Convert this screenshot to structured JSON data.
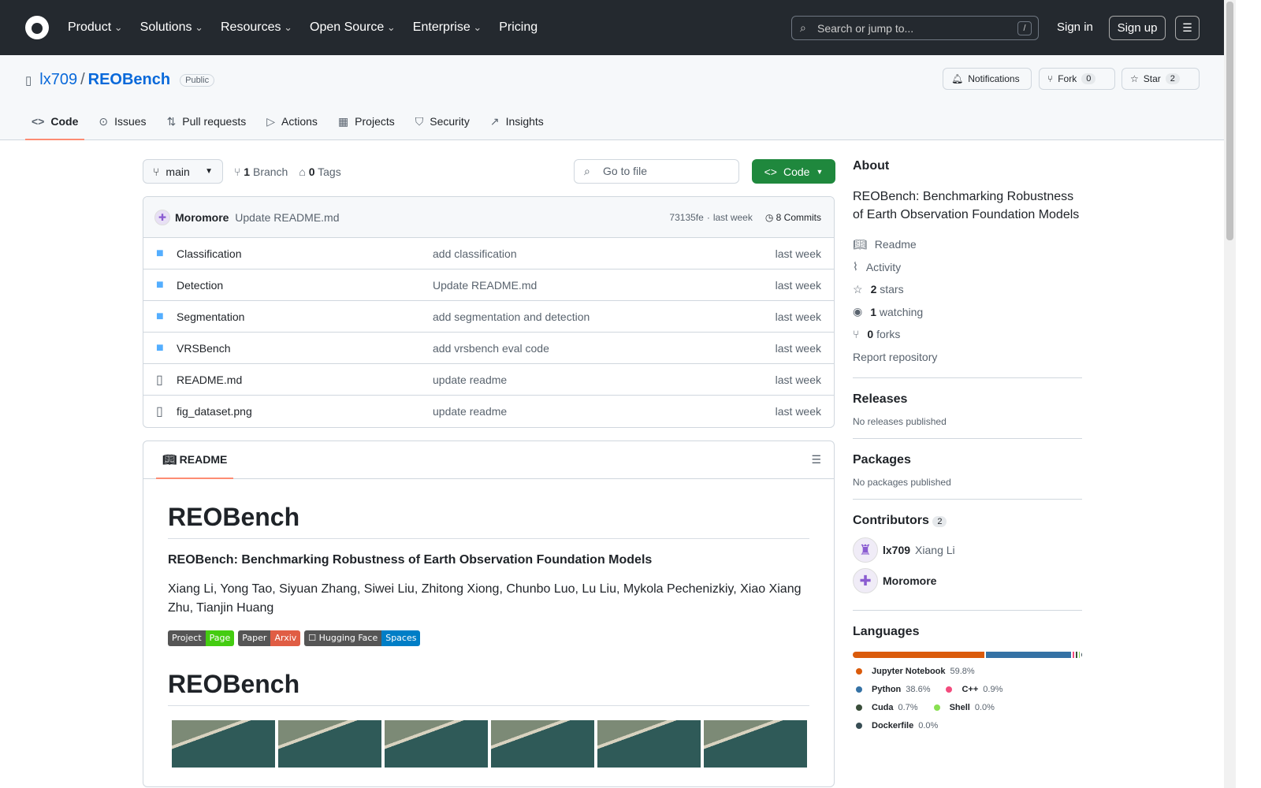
{
  "header": {
    "nav": [
      "Product",
      "Solutions",
      "Resources",
      "Open Source",
      "Enterprise",
      "Pricing"
    ],
    "search_placeholder": "Search or jump to...",
    "search_key": "/",
    "sign_in": "Sign in",
    "sign_up": "Sign up"
  },
  "repo": {
    "owner": "lx709",
    "name": "REOBench",
    "visibility": "Public",
    "notifications": "Notifications",
    "fork": "Fork",
    "fork_count": "0",
    "star": "Star",
    "star_count": "2"
  },
  "tabs": [
    "Code",
    "Issues",
    "Pull requests",
    "Actions",
    "Projects",
    "Security",
    "Insights"
  ],
  "toolbar": {
    "branch": "main",
    "branches_count": "1",
    "branches_label": "Branch",
    "tags_count": "0",
    "tags_label": "Tags",
    "goto": "Go to file",
    "code": "Code"
  },
  "commit": {
    "author": "Moromore",
    "message": "Update README.md",
    "hash": "73135fe",
    "sep": "·",
    "time": "last week",
    "commits": "8 Commits"
  },
  "files": [
    {
      "type": "folder",
      "name": "Classification",
      "message": "add classification",
      "time": "last week"
    },
    {
      "type": "folder",
      "name": "Detection",
      "message": "Update README.md",
      "time": "last week"
    },
    {
      "type": "folder",
      "name": "Segmentation",
      "message": "add segmentation and detection",
      "time": "last week"
    },
    {
      "type": "folder",
      "name": "VRSBench",
      "message": "add vrsbench eval code",
      "time": "last week"
    },
    {
      "type": "file",
      "name": "README.md",
      "message": "update readme",
      "time": "last week"
    },
    {
      "type": "file",
      "name": "fig_dataset.png",
      "message": "update readme",
      "time": "last week"
    }
  ],
  "readme": {
    "tab": "README",
    "title": "REOBench",
    "subtitle": "REOBench: Benchmarking Robustness of Earth Observation Foundation Models",
    "authors": "Xiang Li, Yong Tao, Siyuan Zhang, Siwei Liu, Zhitong Xiong, Chunbo Luo, Lu Liu, Mykola Pechenizkiy, Xiao Xiang Zhu, Tianjin Huang",
    "badges": [
      {
        "left": "Project",
        "right": "Page",
        "color": "#4c1"
      },
      {
        "left": "Paper",
        "right": "Arxiv",
        "color": "#e05d44"
      },
      {
        "left": "☐ Hugging Face",
        "right": "Spaces",
        "color": "#007ec6"
      }
    ],
    "heading2": "REOBench"
  },
  "about": {
    "title": "About",
    "description": "REOBench: Benchmarking Robustness of Earth Observation Foundation Models",
    "readme": "Readme",
    "activity": "Activity",
    "stars_n": "2",
    "stars": "stars",
    "watching_n": "1",
    "watching": "watching",
    "forks_n": "0",
    "forks": "forks",
    "report": "Report repository"
  },
  "releases": {
    "title": "Releases",
    "text": "No releases published"
  },
  "packages": {
    "title": "Packages",
    "text": "No packages published"
  },
  "contributors": {
    "title": "Contributors",
    "count": "2",
    "list": [
      {
        "login": "lx709",
        "name": "Xiang Li"
      },
      {
        "login": "Moromore",
        "name": ""
      }
    ]
  },
  "languages": {
    "title": "Languages",
    "list": [
      {
        "name": "Jupyter Notebook",
        "pct": "59.8%",
        "value": 59.8,
        "color": "#DA5B0B"
      },
      {
        "name": "Python",
        "pct": "38.6%",
        "value": 38.6,
        "color": "#3572A5"
      },
      {
        "name": "C++",
        "pct": "0.9%",
        "value": 0.9,
        "color": "#f34b7d"
      },
      {
        "name": "Cuda",
        "pct": "0.7%",
        "value": 0.7,
        "color": "#3A4E3A"
      },
      {
        "name": "Shell",
        "pct": "0.0%",
        "value": 0.0,
        "color": "#89e051"
      },
      {
        "name": "Dockerfile",
        "pct": "0.0%",
        "value": 0.0,
        "color": "#384d54"
      }
    ]
  }
}
